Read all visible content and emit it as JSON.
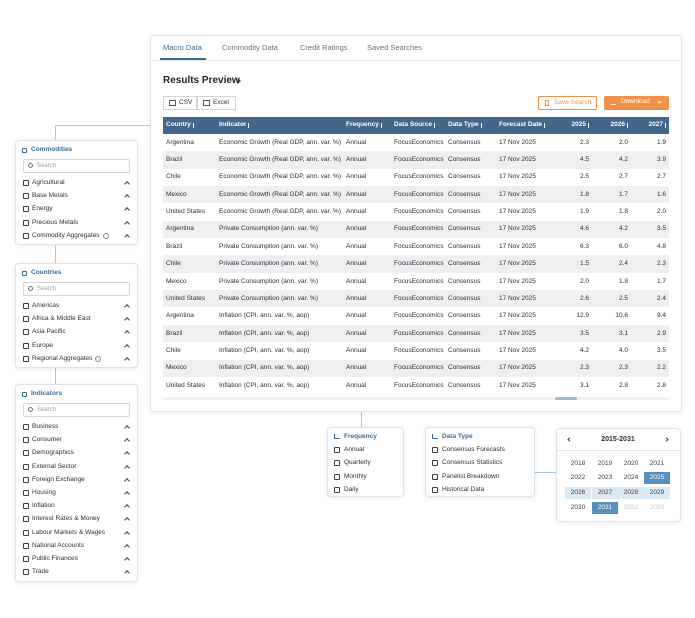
{
  "tabs": [
    "Macro Data",
    "Commodity Data",
    "Credit Ratings",
    "Saved Searches"
  ],
  "results": {
    "title": "Results Preview",
    "export": [
      "CSV",
      "Excel"
    ],
    "save": "Save Search",
    "download": "Download",
    "table": {
      "columns": [
        "Country",
        "Indicator",
        "Frequency",
        "Data Source",
        "Data Type",
        "Forecast Date",
        "2025",
        "2026",
        "2027"
      ],
      "rows": [
        [
          "Argentina",
          "Economic Growth (Real GDP, ann. var. %)",
          "Annual",
          "FocusEconomics",
          "Consensus",
          "17 Nov 2025",
          "2.3",
          "2.0",
          "1.9"
        ],
        [
          "Brazil",
          "Economic Growth (Real GDP, ann. var. %)",
          "Annual",
          "FocusEconomics",
          "Consensus",
          "17 Nov 2025",
          "4.5",
          "4.2",
          "3.9"
        ],
        [
          "Chile",
          "Economic Growth (Real GDP, ann. var. %)",
          "Annual",
          "FocusEconomics",
          "Consensus",
          "17 Nov 2025",
          "2.5",
          "2.7",
          "2.7"
        ],
        [
          "Mexico",
          "Economic Growth (Real GDP, ann. var. %)",
          "Annual",
          "FocusEconomics",
          "Consensus",
          "17 Nov 2025",
          "1.8",
          "1.7",
          "1.6"
        ],
        [
          "United States",
          "Economic Growth (Real GDP, ann. var. %)",
          "Annual",
          "FocusEconomics",
          "Consensus",
          "17 Nov 2025",
          "1.9",
          "1.8",
          "2.0"
        ],
        [
          "Argentina",
          "Private Consumption (ann. var. %)",
          "Annual",
          "FocusEconomics",
          "Consensus",
          "17 Nov 2025",
          "4.6",
          "4.2",
          "3.5"
        ],
        [
          "Brazil",
          "Private Consumption (ann. var. %)",
          "Annual",
          "FocusEconomics",
          "Consensus",
          "17 Nov 2025",
          "6.3",
          "6.0",
          "4.8"
        ],
        [
          "Chile",
          "Private Consumption (ann. var. %)",
          "Annual",
          "FocusEconomics",
          "Consensus",
          "17 Nov 2025",
          "1.5",
          "2.4",
          "2.3"
        ],
        [
          "Mexico",
          "Private Consumption (ann. var. %)",
          "Annual",
          "FocusEconomics",
          "Consensus",
          "17 Nov 2025",
          "2.0",
          "1.8",
          "1.7"
        ],
        [
          "United States",
          "Private Consumption (ann. var. %)",
          "Annual",
          "FocusEconomics",
          "Consensus",
          "17 Nov 2025",
          "2.6",
          "2.5",
          "2.4"
        ],
        [
          "Argentina",
          "Inflation (CPI, ann. var. %, aop)",
          "Annual",
          "FocusEconomics",
          "Consensus",
          "17 Nov 2025",
          "12.9",
          "10.6",
          "9.4"
        ],
        [
          "Brazil",
          "Inflation (CPI, ann. var. %, aop)",
          "Annual",
          "FocusEconomics",
          "Consensus",
          "17 Nov 2025",
          "3.5",
          "3.1",
          "2.9"
        ],
        [
          "Chile",
          "Inflation (CPI, ann. var. %, aop)",
          "Annual",
          "FocusEconomics",
          "Consensus",
          "17 Nov 2025",
          "4.2",
          "4.0",
          "3.5"
        ],
        [
          "Mexico",
          "Inflation (CPI, ann. var. %, aop)",
          "Annual",
          "FocusEconomics",
          "Consensus",
          "17 Nov 2025",
          "2.3",
          "2.3",
          "2.2"
        ],
        [
          "United States",
          "Inflation (CPI, ann. var. %, aop)",
          "Annual",
          "FocusEconomics",
          "Consensus",
          "17 Nov 2025",
          "3.1",
          "2.8",
          "2.8"
        ]
      ]
    }
  },
  "filters": {
    "commodities": {
      "title": "Commodities",
      "search": "Search",
      "items": [
        "Agricultural",
        "Base Metals",
        "Energy",
        "Precious Metals",
        {
          "label": "Commodity Aggregates",
          "info": true
        }
      ]
    },
    "countries": {
      "title": "Countries",
      "search": "Search",
      "items": [
        "Americas",
        "Africa & Middle East",
        "Asia Pacific",
        "Europe",
        {
          "label": "Regional Aggregates",
          "info": true
        }
      ]
    },
    "indicators": {
      "title": "Indicators",
      "search": "Search",
      "items": [
        "Business",
        "Consumer",
        "Demographics",
        "External Sector",
        "Foreign Exchange",
        "Housing",
        "Inflation",
        "Interest Rates & Money",
        "Labour Markets & Wages",
        "National Accounts",
        "Public Finances",
        "Trade"
      ]
    }
  },
  "frequency": {
    "title": "Frequency",
    "options": [
      "Annual",
      "Quarterly",
      "Monthly",
      "Daily"
    ]
  },
  "data_type": {
    "title": "Data Type",
    "options": [
      "Consensus Forecasts",
      "Consensus Statistics",
      "Panelist Breakdown",
      "Historical Data"
    ]
  },
  "year_picker": {
    "range": "2015-2031",
    "years": [
      {
        "label": "2018",
        "state": "normal"
      },
      {
        "label": "2019",
        "state": "normal"
      },
      {
        "label": "2020",
        "state": "normal"
      },
      {
        "label": "2021",
        "state": "normal"
      },
      {
        "label": "2022",
        "state": "normal"
      },
      {
        "label": "2023",
        "state": "normal"
      },
      {
        "label": "2024",
        "state": "normal"
      },
      {
        "label": "2025",
        "state": "selected"
      },
      {
        "label": "2026",
        "state": "in-range"
      },
      {
        "label": "2027",
        "state": "in-range"
      },
      {
        "label": "2028",
        "state": "in-range"
      },
      {
        "label": "2029",
        "state": "in-range"
      },
      {
        "label": "2030",
        "state": "normal"
      },
      {
        "label": "2031",
        "state": "selected"
      },
      {
        "label": "2032",
        "state": "disabled"
      },
      {
        "label": "2033",
        "state": "disabled"
      }
    ]
  }
}
